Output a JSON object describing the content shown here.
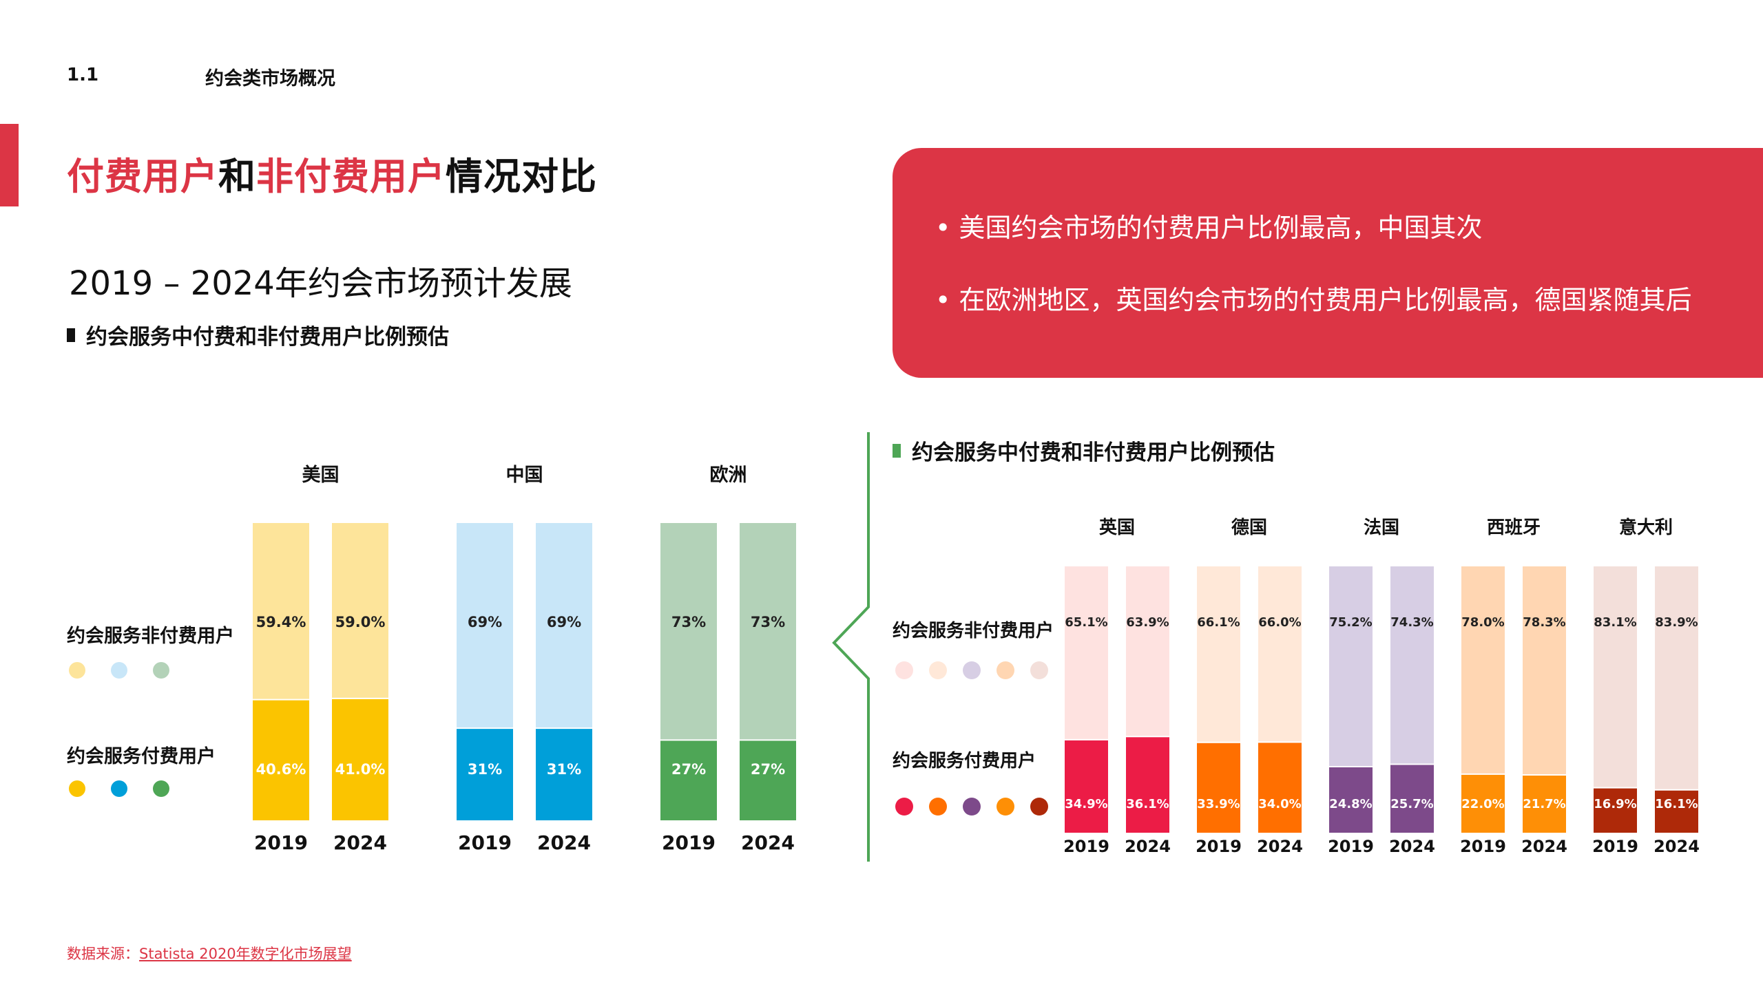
{
  "header": {
    "section_number": "1.1",
    "section_title": "约会类市场概况"
  },
  "title": {
    "part1": "付费用户",
    "part2": "和",
    "part3": "非付费用户",
    "part4": "情况对比"
  },
  "subtitle": "2019 – 2024年约会市场预计发展",
  "notes": [
    "美国约会市场的付费用户比例最高，中国其次",
    "在欧洲地区，英国约会市场的付费用户比例最高，德国紧随其后"
  ],
  "source": {
    "prefix": "数据来源：",
    "link": "Statista 2020年数字化市场展望"
  },
  "colors": {
    "accent": "#dc3545",
    "divider": "#4ea656"
  },
  "chart_data": [
    {
      "type": "bar",
      "stacked": true,
      "heading": "约会服务中付费和非付费用户比例预估",
      "legend_labels": {
        "nonpaid": "约会服务非付费用户",
        "paid": "约会服务付费用户"
      },
      "ylim": [
        0,
        100
      ],
      "groups": [
        {
          "name": "美国",
          "years": [
            "2019",
            "2024"
          ],
          "nonpaid": [
            59.4,
            59.0
          ],
          "paid": [
            40.6,
            41.0
          ],
          "nonpaid_labels": [
            "59.4%",
            "59.0%"
          ],
          "paid_labels": [
            "40.6%",
            "41.0%"
          ],
          "paid_color": "#fbc400",
          "nonpaid_color": "#fde49a"
        },
        {
          "name": "中国",
          "years": [
            "2019",
            "2024"
          ],
          "nonpaid": [
            69,
            69
          ],
          "paid": [
            31,
            31
          ],
          "nonpaid_labels": [
            "69%",
            "69%"
          ],
          "paid_labels": [
            "31%",
            "31%"
          ],
          "paid_color": "#009fd9",
          "nonpaid_color": "#c8e6f8"
        },
        {
          "name": "欧洲",
          "years": [
            "2019",
            "2024"
          ],
          "nonpaid": [
            73,
            73
          ],
          "paid": [
            27,
            27
          ],
          "nonpaid_labels": [
            "73%",
            "73%"
          ],
          "paid_labels": [
            "27%",
            "27%"
          ],
          "paid_color": "#4ea656",
          "nonpaid_color": "#b3d2b8"
        }
      ]
    },
    {
      "type": "bar",
      "stacked": true,
      "heading": "约会服务中付费和非付费用户比例预估",
      "legend_labels": {
        "nonpaid": "约会服务非付费用户",
        "paid": "约会服务付费用户"
      },
      "ylim": [
        0,
        100
      ],
      "groups": [
        {
          "name": "英国",
          "years": [
            "2019",
            "2024"
          ],
          "nonpaid": [
            65.1,
            63.9
          ],
          "paid": [
            34.9,
            36.1
          ],
          "nonpaid_labels": [
            "65.1%",
            "63.9%"
          ],
          "paid_labels": [
            "34.9%",
            "36.1%"
          ],
          "paid_color": "#ec1c46",
          "nonpaid_color": "#fee2e0"
        },
        {
          "name": "德国",
          "years": [
            "2019",
            "2024"
          ],
          "nonpaid": [
            66.1,
            66.0
          ],
          "paid": [
            33.9,
            34.0
          ],
          "nonpaid_labels": [
            "66.1%",
            "66.0%"
          ],
          "paid_labels": [
            "33.9%",
            "34.0%"
          ],
          "paid_color": "#ff6f00",
          "nonpaid_color": "#ffe8d8"
        },
        {
          "name": "法国",
          "years": [
            "2019",
            "2024"
          ],
          "nonpaid": [
            75.2,
            74.3
          ],
          "paid": [
            24.8,
            25.7
          ],
          "nonpaid_labels": [
            "75.2%",
            "74.3%"
          ],
          "paid_labels": [
            "24.8%",
            "25.7%"
          ],
          "paid_color": "#7d4a8a",
          "nonpaid_color": "#d7cee4"
        },
        {
          "name": "西班牙",
          "years": [
            "2019",
            "2024"
          ],
          "nonpaid": [
            78.0,
            78.3
          ],
          "paid": [
            22.0,
            21.7
          ],
          "nonpaid_labels": [
            "78.0%",
            "78.3%"
          ],
          "paid_labels": [
            "22.0%",
            "21.7%"
          ],
          "paid_color": "#fe8f06",
          "nonpaid_color": "#ffd6b2"
        },
        {
          "name": "意大利",
          "years": [
            "2019",
            "2024"
          ],
          "nonpaid": [
            83.1,
            83.9
          ],
          "paid": [
            16.9,
            16.1
          ],
          "nonpaid_labels": [
            "83.1%",
            "83.9%"
          ],
          "paid_labels": [
            "16.9%",
            "16.1%"
          ],
          "paid_color": "#ae2909",
          "nonpaid_color": "#f3dfda"
        }
      ]
    }
  ]
}
